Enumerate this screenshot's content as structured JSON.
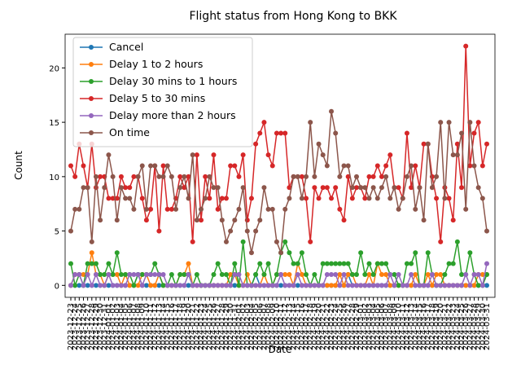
{
  "chart_data": {
    "type": "line",
    "title": "Flight status from Hong Kong to BKK",
    "x_label": "Date",
    "y_label": "Count",
    "categories": [
      "2023-12-23",
      "2023-12-24",
      "2023-12-25",
      "2023-12-26",
      "2023-12-27",
      "2023-12-28",
      "2023-12-29",
      "2023-12-30",
      "2023-12-31",
      "2024-01-01",
      "2024-01-02",
      "2024-01-03",
      "2024-01-04",
      "2024-01-05",
      "2024-01-06",
      "2024-01-07",
      "2024-01-08",
      "2024-01-09",
      "2024-01-10",
      "2024-01-11",
      "2024-01-12",
      "2024-01-13",
      "2024-01-14",
      "2024-01-15",
      "2024-01-16",
      "2024-01-17",
      "2024-01-18",
      "2024-01-19",
      "2024-01-20",
      "2024-01-21",
      "2024-01-22",
      "2024-01-23",
      "2024-01-24",
      "2024-01-25",
      "2024-01-26",
      "2024-01-27",
      "2024-01-28",
      "2024-01-29",
      "2024-01-30",
      "2024-01-31",
      "2024-02-01",
      "2024-02-02",
      "2024-02-03",
      "2024-02-04",
      "2024-02-05",
      "2024-02-06",
      "2024-02-07",
      "2024-02-08",
      "2024-02-09",
      "2024-02-10",
      "2024-02-11",
      "2024-02-12",
      "2024-02-13",
      "2024-02-14",
      "2024-02-15",
      "2024-02-16",
      "2024-02-17",
      "2024-02-18",
      "2024-02-19",
      "2024-02-20",
      "2024-02-21",
      "2024-02-22",
      "2024-02-23",
      "2024-02-24",
      "2024-02-25",
      "2024-02-26",
      "2024-02-27",
      "2024-02-28",
      "2024-02-29",
      "2024-03-01",
      "2024-03-02",
      "2024-03-03",
      "2024-03-04",
      "2024-03-05",
      "2024-03-06",
      "2024-03-07",
      "2024-03-08",
      "2024-03-09",
      "2024-03-10",
      "2024-03-11",
      "2024-03-12",
      "2024-03-13",
      "2024-03-14",
      "2024-03-15",
      "2024-03-16",
      "2024-03-17",
      "2024-03-18",
      "2024-03-19",
      "2024-03-20",
      "2024-03-21",
      "2024-03-22",
      "2024-03-23",
      "2024-03-24",
      "2024-03-25",
      "2024-03-26",
      "2024-03-27",
      "2024-03-28",
      "2024-03-29",
      "2024-03-30",
      "2024-03-31"
    ],
    "series": [
      {
        "name": "Cancel",
        "color": "#1f77b4",
        "values": [
          0,
          0,
          0,
          0,
          0,
          0,
          0,
          0,
          0,
          0,
          0,
          0,
          0,
          0,
          0,
          0,
          1,
          0,
          0,
          0,
          0,
          0,
          0,
          0,
          0,
          0,
          0,
          0,
          0,
          0,
          0,
          0,
          0,
          0,
          0,
          0,
          0,
          0,
          0,
          0,
          0,
          0,
          0,
          0,
          1,
          0,
          0,
          0,
          0,
          0,
          0,
          0,
          0,
          0,
          0,
          0,
          0,
          0,
          0,
          0,
          0,
          0,
          0,
          0,
          0,
          0,
          1,
          0,
          0,
          0,
          0,
          0,
          0,
          0,
          0,
          0,
          0,
          0,
          0,
          0,
          0,
          0,
          0,
          0,
          0,
          0,
          0,
          0,
          0,
          0,
          0,
          0,
          0,
          0,
          0,
          0,
          0,
          0,
          0,
          0
        ]
      },
      {
        "name": "Delay 1 to 2 hours",
        "color": "#ff7f0e",
        "values": [
          0,
          1,
          1,
          1,
          1,
          3,
          1,
          1,
          0,
          1,
          1,
          1,
          0,
          1,
          0,
          0,
          0,
          1,
          1,
          0,
          0,
          1,
          0,
          0,
          0,
          0,
          1,
          1,
          2,
          0,
          0,
          0,
          0,
          0,
          0,
          0,
          0,
          0,
          1,
          1,
          0,
          0,
          1,
          0,
          0,
          0,
          1,
          0,
          0,
          1,
          1,
          1,
          1,
          0,
          2,
          1,
          0,
          0,
          0,
          0,
          0,
          0,
          0,
          0,
          1,
          0,
          1,
          1,
          0,
          0,
          0,
          1,
          0,
          2,
          1,
          1,
          0,
          0,
          0,
          0,
          0,
          0,
          1,
          0,
          0,
          1,
          0,
          1,
          1,
          0,
          0,
          0,
          0,
          0,
          0,
          0,
          0,
          1,
          1,
          1
        ]
      },
      {
        "name": "Delay 30 mins to 1 hours",
        "color": "#2ca02c",
        "values": [
          2,
          0,
          1,
          0,
          2,
          2,
          2,
          1,
          1,
          2,
          1,
          3,
          1,
          1,
          1,
          0,
          1,
          1,
          1,
          1,
          2,
          1,
          0,
          0,
          1,
          0,
          1,
          1,
          1,
          0,
          1,
          0,
          0,
          0,
          1,
          2,
          1,
          1,
          0,
          2,
          0,
          4,
          0,
          0,
          1,
          2,
          1,
          2,
          0,
          1,
          3,
          4,
          3,
          2,
          2,
          3,
          1,
          0,
          1,
          0,
          2,
          2,
          2,
          2,
          2,
          2,
          2,
          1,
          1,
          3,
          1,
          2,
          1,
          2,
          2,
          2,
          1,
          1,
          0,
          0,
          2,
          2,
          3,
          0,
          0,
          3,
          1,
          0,
          0,
          1,
          2,
          2,
          4,
          1,
          1,
          3,
          1,
          0,
          0,
          1
        ]
      },
      {
        "name": "Delay 5 to 30 mins",
        "color": "#d62728",
        "values": [
          11,
          10,
          13,
          11,
          9,
          13,
          9,
          10,
          10,
          8,
          8,
          8,
          10,
          9,
          9,
          10,
          10,
          8,
          6,
          7,
          11,
          5,
          11,
          7,
          7,
          8,
          10,
          9,
          10,
          4,
          12,
          6,
          10,
          8,
          12,
          7,
          8,
          8,
          11,
          11,
          10,
          12,
          6,
          8,
          13,
          14,
          15,
          12,
          11,
          14,
          14,
          14,
          9,
          10,
          10,
          10,
          8,
          4,
          9,
          8,
          9,
          9,
          8,
          9,
          7,
          6,
          10,
          8,
          9,
          9,
          8,
          10,
          10,
          11,
          10,
          11,
          12,
          9,
          9,
          8,
          14,
          9,
          11,
          9,
          13,
          13,
          10,
          8,
          4,
          9,
          8,
          6,
          13,
          9,
          22,
          11,
          14,
          15,
          11,
          13
        ]
      },
      {
        "name": "Delay more than 2 hours",
        "color": "#9467bd",
        "values": [
          0,
          1,
          1,
          0,
          1,
          0,
          1,
          0,
          0,
          1,
          0,
          0,
          0,
          0,
          1,
          1,
          1,
          0,
          1,
          1,
          1,
          1,
          1,
          0,
          0,
          0,
          0,
          0,
          1,
          0,
          0,
          0,
          0,
          0,
          0,
          0,
          0,
          0,
          0,
          1,
          1,
          0,
          0,
          0,
          0,
          0,
          0,
          0,
          0,
          0,
          1,
          0,
          0,
          0,
          1,
          0,
          0,
          0,
          0,
          0,
          0,
          1,
          1,
          1,
          0,
          1,
          0,
          0,
          0,
          0,
          0,
          0,
          0,
          0,
          0,
          0,
          1,
          0,
          1,
          0,
          0,
          1,
          0,
          0,
          0,
          0,
          1,
          0,
          0,
          0,
          0,
          0,
          0,
          0,
          1,
          0,
          1,
          1,
          0,
          2
        ]
      },
      {
        "name": "On time",
        "color": "#8c564b",
        "values": [
          5,
          7,
          7,
          9,
          9,
          4,
          10,
          6,
          9,
          12,
          10,
          6,
          9,
          8,
          8,
          7,
          10,
          11,
          7,
          11,
          11,
          10,
          10,
          11,
          10,
          7,
          9,
          10,
          8,
          12,
          6,
          7,
          8,
          10,
          9,
          9,
          6,
          4,
          5,
          6,
          7,
          9,
          5,
          3,
          5,
          6,
          9,
          7,
          7,
          4,
          3,
          7,
          8,
          10,
          10,
          8,
          10,
          15,
          10,
          13,
          12,
          11,
          16,
          14,
          10,
          11,
          11,
          9,
          10,
          9,
          9,
          8,
          9,
          8,
          9,
          10,
          8,
          9,
          7,
          8,
          10,
          11,
          7,
          9,
          6,
          13,
          9,
          10,
          15,
          8,
          15,
          12,
          12,
          14,
          7,
          15,
          11,
          9,
          8,
          5
        ]
      }
    ],
    "ylim": [
      -1.1,
      23.1
    ],
    "yticks": [
      0,
      5,
      10,
      15,
      20
    ],
    "legend": "upper left",
    "grid": false
  }
}
